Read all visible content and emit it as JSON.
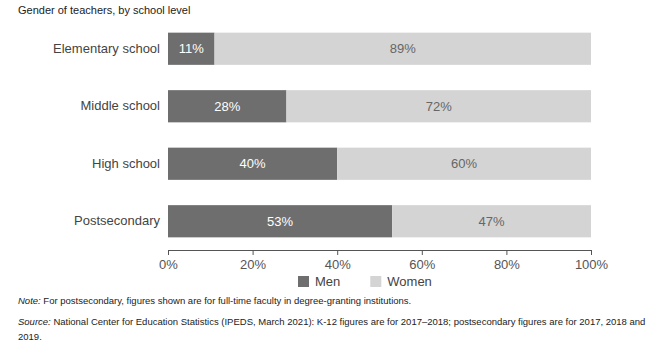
{
  "chart_data": {
    "type": "bar",
    "orientation": "horizontal",
    "stacked": true,
    "data_labels": true,
    "grid": false,
    "legend": "bottom",
    "title": "Gender of teachers, by school level",
    "categories": [
      "Elementary school",
      "Middle school",
      "High school",
      "Postsecondary"
    ],
    "series": [
      {
        "name": "Men",
        "color": "#6e6e6e",
        "values": [
          11,
          28,
          40,
          53
        ],
        "value_labels": [
          "11%",
          "28%",
          "40%",
          "53%"
        ]
      },
      {
        "name": "Women",
        "color": "#d4d4d4",
        "values": [
          89,
          72,
          60,
          47
        ],
        "value_labels": [
          "89%",
          "72%",
          "60%",
          "47%"
        ]
      }
    ],
    "xlim": [
      0,
      100
    ],
    "xticks": [
      {
        "value": 0,
        "label": "0%"
      },
      {
        "value": 20,
        "label": "20%"
      },
      {
        "value": 40,
        "label": "40%"
      },
      {
        "value": 60,
        "label": "60%"
      },
      {
        "value": 80,
        "label": "80%"
      },
      {
        "value": 100,
        "label": "100%"
      }
    ],
    "note_label": "Note:",
    "note": " For postsecondary, figures shown are for full-time faculty in degree-granting institutions.",
    "source_label": "Source:",
    "source": [
      " National Center for Education Statistics (IPEDS, March 2021): K-12 figures are for 2017–2018; postsecondary figures are for 2017, 2018 and",
      "2019."
    ]
  }
}
